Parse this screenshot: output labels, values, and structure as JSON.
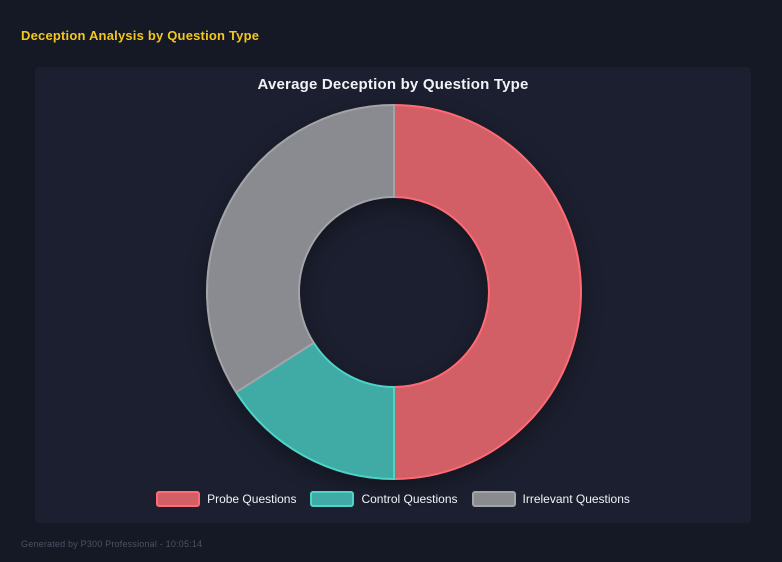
{
  "page": {
    "title": "Deception Analysis by Question Type",
    "footer": "Generated by P300 Professional - 10:05:14"
  },
  "colors": {
    "page_background": "#151825",
    "panel_background": "#1c1f2f",
    "header_accent": "#f3c71f",
    "text_primary": "#f2f3f7",
    "footer_text": "#4c5165"
  },
  "chart_data": {
    "type": "pie",
    "variant": "doughnut",
    "title": "Average Deception by Question Type",
    "categories": [
      "Probe Questions",
      "Control Questions",
      "Irrelevant Questions"
    ],
    "values": [
      50,
      16,
      34
    ],
    "values_note": "estimated share of donut in percent, read from slice angles (180deg, 57deg, 123deg)",
    "start_angle_deg": 0,
    "direction": "clockwise",
    "cutout_ratio": 0.51,
    "legend_position": "bottom",
    "grid": false,
    "slices": [
      {
        "label": "Probe Questions",
        "value": 50,
        "fill": "#d25f66",
        "border": "#ff6b74"
      },
      {
        "label": "Control Questions",
        "value": 16,
        "fill": "#40aaa4",
        "border": "#4dd4c7"
      },
      {
        "label": "Irrelevant Questions",
        "value": 34,
        "fill": "#8a8b90",
        "border": "#a2a4a8"
      }
    ]
  }
}
